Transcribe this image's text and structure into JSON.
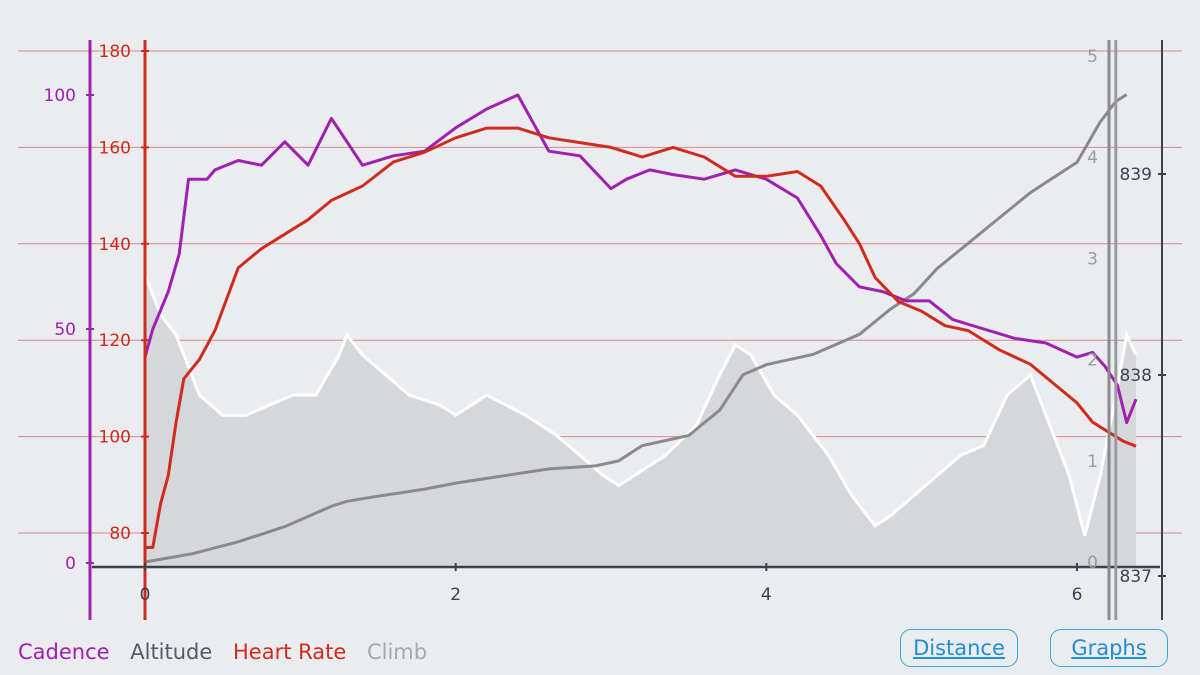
{
  "legend": {
    "cadence": "Cadence",
    "altitude": "Altitude",
    "heart_rate": "Heart Rate",
    "climb": "Climb"
  },
  "buttons": {
    "distance": "Distance",
    "graphs": "Graphs"
  },
  "colors": {
    "background": "#eaecf0",
    "cadence": "#a020b0",
    "heart_rate": "#d02c1e",
    "altitude_fill": "#d5d7db",
    "altitude_line": "#ffffff",
    "climb": "#8a8a8a",
    "grid": "#d88a88",
    "axis": "#3c4252",
    "button": "#1f8fd1"
  },
  "chart_data": {
    "type": "line",
    "x_axis": {
      "ticks": [
        "0",
        "2",
        "4",
        "6"
      ],
      "range": [
        0,
        6.4
      ]
    },
    "axes": {
      "cadence": {
        "side": "left",
        "range": [
          0,
          115
        ],
        "ticks": [
          "0",
          "50",
          "100"
        ]
      },
      "heart_rate": {
        "side": "left",
        "range": [
          75,
          183
        ],
        "ticks": [
          "80",
          "100",
          "120",
          "140",
          "160",
          "180"
        ]
      },
      "climb": {
        "side": "right",
        "range": [
          0,
          5.1
        ],
        "ticks": [
          "0",
          "1",
          "2",
          "3",
          "4",
          "5"
        ]
      },
      "altitude": {
        "side": "right",
        "range": [
          836.9,
          839.8
        ],
        "ticks": [
          "837",
          "838",
          "839"
        ]
      }
    },
    "series": [
      {
        "name": "Cadence",
        "key": "cadence",
        "x": [
          0,
          0.05,
          0.15,
          0.22,
          0.28,
          0.4,
          0.45,
          0.6,
          0.75,
          0.9,
          1.05,
          1.2,
          1.4,
          1.6,
          1.8,
          2.0,
          2.2,
          2.4,
          2.6,
          2.8,
          3.0,
          3.1,
          3.25,
          3.4,
          3.6,
          3.8,
          4.0,
          4.2,
          4.35,
          4.45,
          4.6,
          4.75,
          4.9,
          5.05,
          5.2,
          5.4,
          5.6,
          5.8,
          6.0,
          6.1,
          6.18,
          6.26,
          6.32,
          6.38
        ],
        "y": [
          44,
          50,
          58,
          66,
          82,
          82,
          84,
          86,
          85,
          90,
          85,
          95,
          85,
          87,
          88,
          93,
          97,
          100,
          88,
          87,
          80,
          82,
          84,
          83,
          82,
          84,
          82,
          78,
          70,
          64,
          59,
          58,
          56,
          56,
          52,
          50,
          48,
          47,
          44,
          45,
          42,
          38,
          30,
          35
        ]
      },
      {
        "name": "Heart Rate",
        "key": "heart_rate",
        "x": [
          0,
          0.05,
          0.1,
          0.15,
          0.2,
          0.25,
          0.3,
          0.35,
          0.45,
          0.6,
          0.75,
          0.9,
          1.05,
          1.2,
          1.4,
          1.6,
          1.8,
          2.0,
          2.2,
          2.4,
          2.6,
          2.8,
          3.0,
          3.2,
          3.4,
          3.6,
          3.8,
          4.0,
          4.2,
          4.35,
          4.5,
          4.6,
          4.7,
          4.85,
          5.0,
          5.15,
          5.3,
          5.5,
          5.7,
          5.85,
          6.0,
          6.1,
          6.2,
          6.3,
          6.38
        ],
        "y": [
          77,
          77,
          86,
          92,
          103,
          112,
          114,
          116,
          122,
          135,
          139,
          142,
          145,
          149,
          152,
          157,
          159,
          162,
          164,
          164,
          162,
          161,
          160,
          158,
          160,
          158,
          154,
          154,
          155,
          152,
          145,
          140,
          133,
          128,
          126,
          123,
          122,
          118,
          115,
          111,
          107,
          103,
          101,
          99,
          98
        ]
      },
      {
        "name": "Altitude",
        "key": "altitude",
        "x": [
          0,
          0.1,
          0.2,
          0.35,
          0.5,
          0.65,
          0.8,
          0.95,
          1.1,
          1.25,
          1.3,
          1.4,
          1.55,
          1.7,
          1.9,
          2.0,
          2.2,
          2.45,
          2.65,
          2.8,
          2.95,
          3.05,
          3.15,
          3.35,
          3.55,
          3.7,
          3.8,
          3.9,
          4.05,
          4.2,
          4.4,
          4.55,
          4.7,
          4.8,
          4.95,
          5.1,
          5.25,
          5.4,
          5.55,
          5.7,
          5.8,
          5.95,
          6.05,
          6.15,
          6.25,
          6.32,
          6.38
        ],
        "y": [
          838.5,
          838.3,
          838.2,
          837.9,
          837.8,
          837.8,
          837.85,
          837.9,
          837.9,
          838.1,
          838.2,
          838.1,
          838.0,
          837.9,
          837.85,
          837.8,
          837.9,
          837.8,
          837.7,
          837.6,
          837.5,
          837.45,
          837.5,
          837.6,
          837.75,
          838.0,
          838.15,
          838.1,
          837.9,
          837.8,
          837.6,
          837.4,
          837.25,
          837.3,
          837.4,
          837.5,
          837.6,
          837.65,
          837.9,
          838.0,
          837.8,
          837.5,
          837.2,
          837.5,
          837.9,
          838.2,
          838.1
        ]
      },
      {
        "name": "Climb",
        "key": "climb",
        "x": [
          0,
          0.3,
          0.6,
          0.9,
          1.2,
          1.3,
          1.5,
          1.8,
          2.0,
          2.3,
          2.6,
          2.9,
          3.05,
          3.2,
          3.5,
          3.7,
          3.85,
          4.0,
          4.3,
          4.6,
          4.8,
          4.95,
          5.1,
          5.3,
          5.5,
          5.7,
          5.9,
          6.0,
          6.15,
          6.25,
          6.32
        ],
        "y": [
          0,
          0.08,
          0.2,
          0.35,
          0.55,
          0.6,
          0.65,
          0.72,
          0.78,
          0.85,
          0.92,
          0.95,
          1.0,
          1.15,
          1.25,
          1.5,
          1.85,
          1.95,
          2.05,
          2.25,
          2.5,
          2.65,
          2.9,
          3.15,
          3.4,
          3.65,
          3.85,
          3.95,
          4.35,
          4.55,
          4.62
        ]
      }
    ],
    "cursor_x": 6.25,
    "grid": true
  }
}
